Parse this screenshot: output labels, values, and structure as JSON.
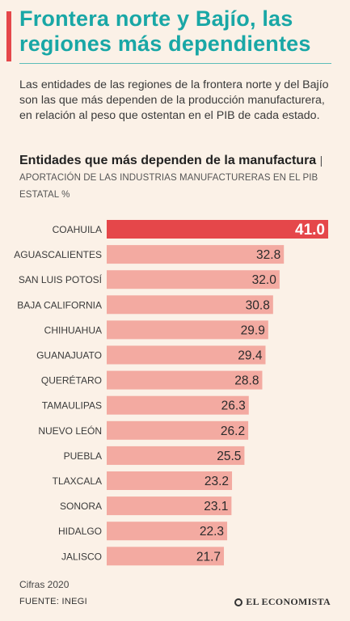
{
  "header": {
    "title": "Frontera norte y Bajío, las regiones más dependientes"
  },
  "intro": {
    "text": "Las entidades de las regiones de la frontera norte y del Bajío son las que más dependen de la producción manufacturera, en relación al peso que ostentan en el PIB de cada estado."
  },
  "chart_data": {
    "type": "bar",
    "orientation": "horizontal",
    "title": "Entidades que más dependen de la manufactura",
    "subtitle": "APORTACIÓN DE LAS INDUSTRIAS MANUFACTURERAS EN EL PIB ESTATAL %",
    "categories": [
      "COAHUILA",
      "AGUASCALIENTES",
      "SAN LUIS POTOSÍ",
      "BAJA CALIFORNIA",
      "CHIHUAHUA",
      "GUANAJUATO",
      "QUERÉTARO",
      "TAMAULIPAS",
      "NUEVO LEÓN",
      "PUEBLA",
      "TLAXCALA",
      "SONORA",
      "HIDALGO",
      "JALISCO"
    ],
    "values": [
      41.0,
      32.8,
      32.0,
      30.8,
      29.9,
      29.4,
      28.8,
      26.3,
      26.2,
      25.5,
      23.2,
      23.1,
      22.3,
      21.7
    ],
    "labels": [
      "41.0",
      "32.8",
      "32.0",
      "30.8",
      "29.9",
      "29.4",
      "28.8",
      "26.3",
      "26.2",
      "25.5",
      "23.2",
      "23.1",
      "22.3",
      "21.7"
    ],
    "highlight_color": "#e5474a",
    "bar_color": "#f3aaa1",
    "xlim": [
      0,
      41.0
    ],
    "grid": false
  },
  "footer": {
    "note": "Cifras 2020",
    "source": "FUENTE: INEGI",
    "brand": "EL ECONOMISTA"
  },
  "colors": {
    "background": "#fbf1e7",
    "headline": "#19a7a6",
    "accent": "#e5474a"
  }
}
